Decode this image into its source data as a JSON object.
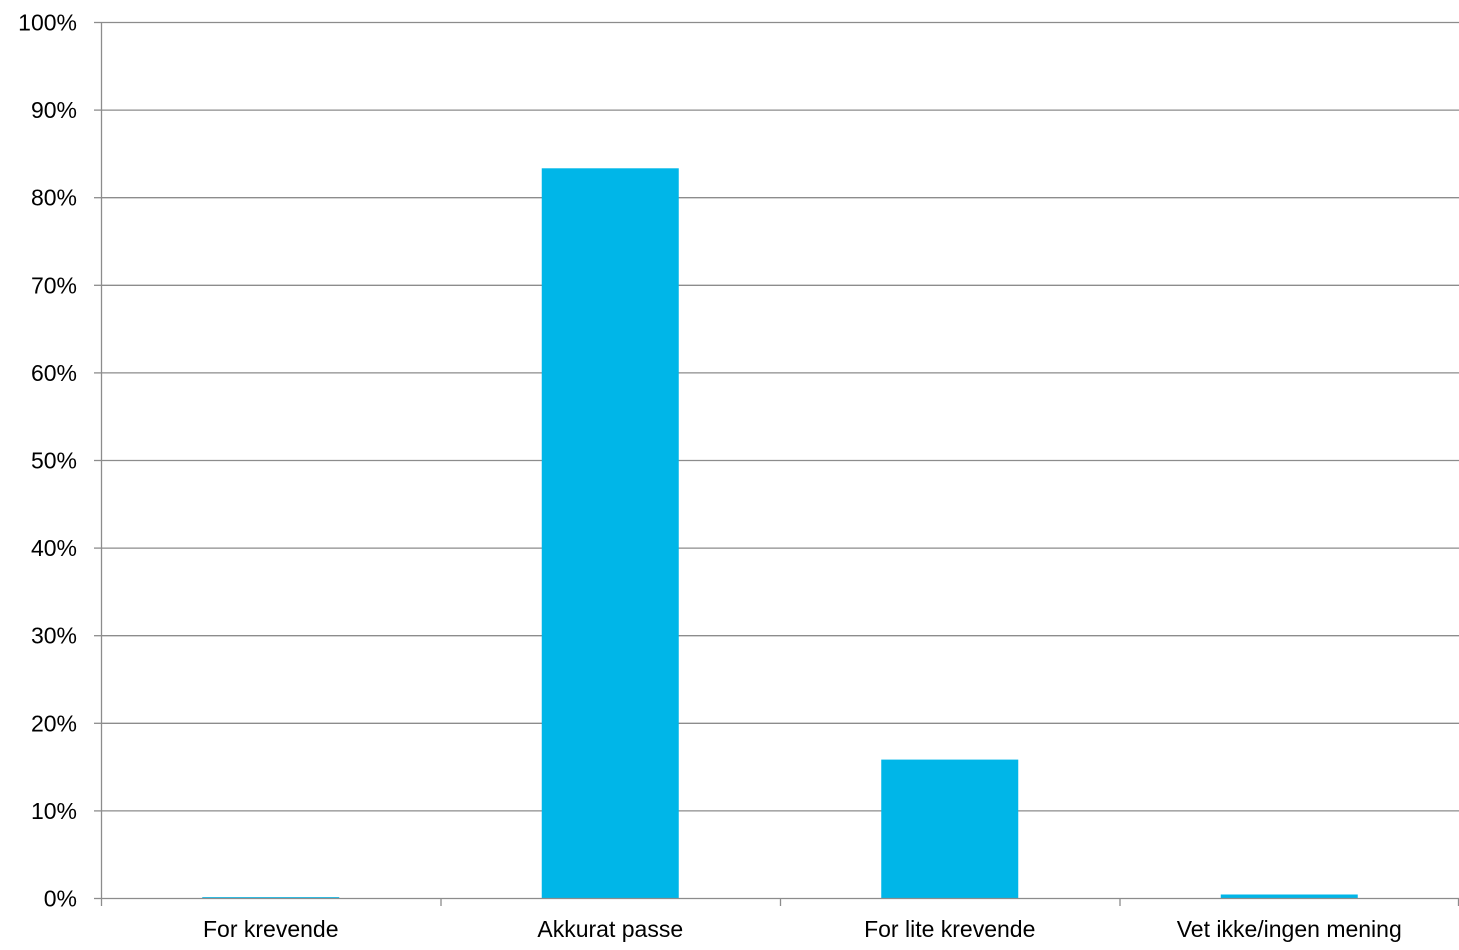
{
  "chart_data": {
    "type": "bar",
    "categories": [
      "For krevende",
      "Akkurat passe",
      "For lite krevende",
      "Vet ikke/ingen mening"
    ],
    "values": [
      0.1,
      83.3,
      15.8,
      0.4
    ],
    "ylim": [
      0,
      100
    ],
    "y_ticks": [
      0,
      10,
      20,
      30,
      40,
      50,
      60,
      70,
      80,
      90,
      100
    ],
    "y_tick_labels": [
      "0%",
      "10%",
      "20%",
      "30%",
      "40%",
      "50%",
      "60%",
      "70%",
      "80%",
      "90%",
      "100%"
    ],
    "grid": true,
    "legend": "none",
    "colors": {
      "bar": "#00B6E8",
      "gridline": "#8C8C8C",
      "axis": "#8C8C8C",
      "text": "#000000"
    }
  }
}
